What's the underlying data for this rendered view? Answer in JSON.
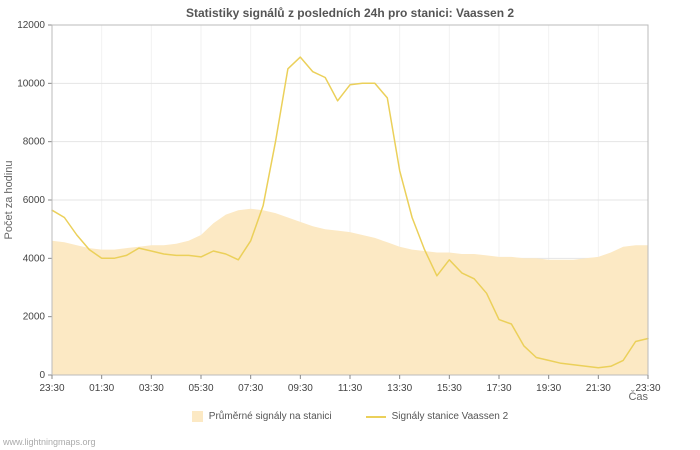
{
  "footer": {
    "site": "www.lightningmaps.org"
  },
  "colors": {
    "area_fill": "#fce9c4",
    "line_stroke": "#ebd05a",
    "grid_h": "#e4e4e4",
    "grid_v": "#f2f2f2",
    "plot_border": "#bbbbbb",
    "tick": "#888888",
    "title_text": "#555555",
    "axis_text": "#666666"
  },
  "chart_data": {
    "type": "line",
    "title": "Statistiky signálů z posledních 24h pro stanici: Vaassen 2",
    "xlabel": "Čas",
    "ylabel": "Počet za hodinu",
    "ylim": [
      0,
      12000
    ],
    "y_ticks": [
      0,
      2000,
      4000,
      6000,
      8000,
      10000,
      12000
    ],
    "x_tick_labels": [
      "23:30",
      "01:30",
      "03:30",
      "05:30",
      "07:30",
      "09:30",
      "11:30",
      "13:30",
      "15:30",
      "17:30",
      "19:30",
      "21:30",
      "23:30"
    ],
    "x_step_minutes": 30,
    "grid": true,
    "legend_position": "bottom",
    "series": [
      {
        "name": "Průměrné signály na stanici",
        "style": "area",
        "color": "#fce9c4",
        "values": [
          4600,
          4550,
          4450,
          4350,
          4300,
          4300,
          4350,
          4400,
          4450,
          4450,
          4500,
          4600,
          4800,
          5200,
          5500,
          5650,
          5700,
          5650,
          5550,
          5400,
          5250,
          5100,
          5000,
          4950,
          4900,
          4800,
          4700,
          4550,
          4400,
          4300,
          4250,
          4200,
          4200,
          4150,
          4150,
          4100,
          4050,
          4050,
          4000,
          4000,
          3950,
          3950,
          3950,
          4000,
          4050,
          4200,
          4400,
          4450,
          4450
        ]
      },
      {
        "name": "Signály stanice Vaassen 2",
        "style": "line",
        "color": "#ebd05a",
        "values": [
          5650,
          5400,
          4800,
          4300,
          4000,
          4000,
          4100,
          4350,
          4250,
          4150,
          4100,
          4100,
          4050,
          4250,
          4150,
          3950,
          4600,
          5800,
          8000,
          10500,
          10900,
          10400,
          10200,
          9400,
          9950,
          10000,
          10000,
          9500,
          7000,
          5400,
          4300,
          3400,
          3950,
          3500,
          3300,
          2800,
          1900,
          1750,
          1000,
          600,
          500,
          400,
          350,
          300,
          250,
          300,
          500,
          1150,
          1250
        ]
      }
    ]
  }
}
